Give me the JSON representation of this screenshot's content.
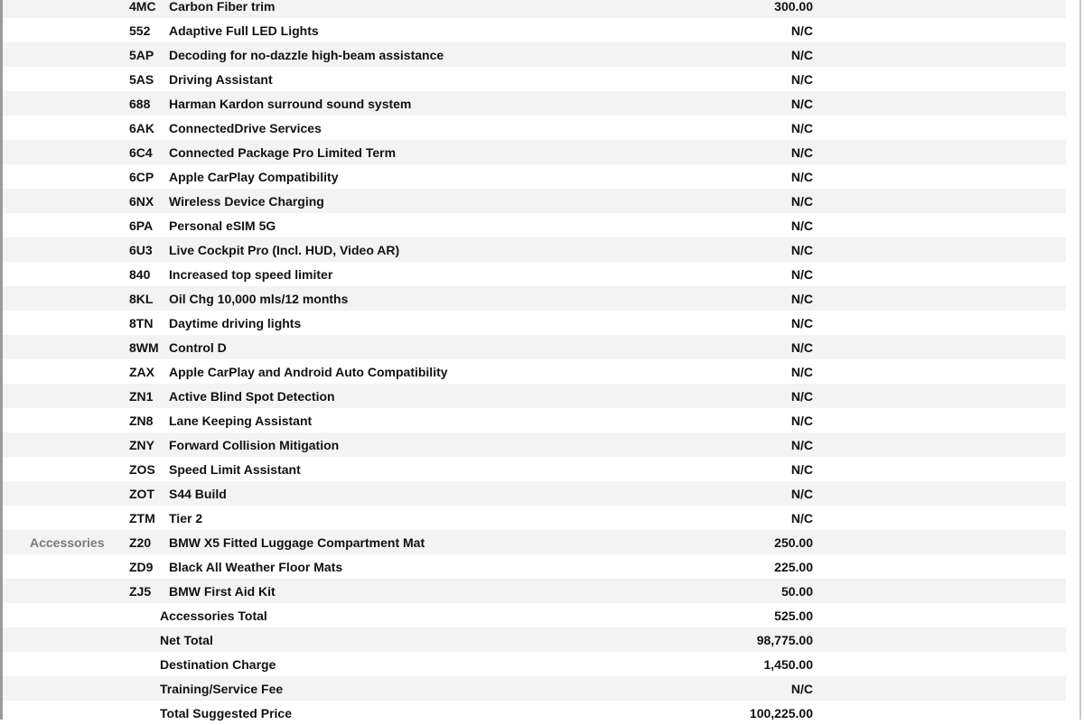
{
  "options": [
    {
      "code": "4MC",
      "description": "Carbon Fiber trim",
      "price": "300.00"
    },
    {
      "code": "552",
      "description": "Adaptive Full LED Lights",
      "price": "N/C"
    },
    {
      "code": "5AP",
      "description": "Decoding for no-dazzle high-beam assistance",
      "price": "N/C"
    },
    {
      "code": "5AS",
      "description": "Driving Assistant",
      "price": "N/C"
    },
    {
      "code": "688",
      "description": "Harman Kardon surround sound system",
      "price": "N/C"
    },
    {
      "code": "6AK",
      "description": "ConnectedDrive Services",
      "price": "N/C"
    },
    {
      "code": "6C4",
      "description": "Connected Package Pro Limited Term",
      "price": "N/C"
    },
    {
      "code": "6CP",
      "description": "Apple CarPlay Compatibility",
      "price": "N/C"
    },
    {
      "code": "6NX",
      "description": "Wireless Device Charging",
      "price": "N/C"
    },
    {
      "code": "6PA",
      "description": "Personal eSIM 5G",
      "price": "N/C"
    },
    {
      "code": "6U3",
      "description": "Live Cockpit Pro (Incl. HUD, Video AR)",
      "price": "N/C"
    },
    {
      "code": "840",
      "description": "Increased top speed limiter",
      "price": "N/C"
    },
    {
      "code": "8KL",
      "description": "Oil Chg 10,000 mls/12 months",
      "price": "N/C"
    },
    {
      "code": "8TN",
      "description": "Daytime driving lights",
      "price": "N/C"
    },
    {
      "code": "8WM",
      "description": "Control D",
      "price": "N/C"
    },
    {
      "code": "ZAX",
      "description": "Apple CarPlay and Android Auto Compatibility",
      "price": "N/C"
    },
    {
      "code": "ZN1",
      "description": "Active Blind Spot Detection",
      "price": "N/C"
    },
    {
      "code": "ZN8",
      "description": "Lane Keeping Assistant",
      "price": "N/C"
    },
    {
      "code": "ZNY",
      "description": "Forward Collision Mitigation",
      "price": "N/C"
    },
    {
      "code": "ZOS",
      "description": "Speed Limit Assistant",
      "price": "N/C"
    },
    {
      "code": "ZOT",
      "description": "S44 Build",
      "price": "N/C"
    },
    {
      "code": "ZTM",
      "description": "Tier 2",
      "price": "N/C"
    }
  ],
  "accessories": {
    "category_label": "Accessories",
    "items": [
      {
        "code": "Z20",
        "description": "BMW X5 Fitted Luggage Compartment Mat",
        "price": "250.00"
      },
      {
        "code": "ZD9",
        "description": "Black All Weather Floor Mats",
        "price": "225.00"
      },
      {
        "code": "ZJ5",
        "description": "BMW First Aid Kit",
        "price": "50.00"
      }
    ]
  },
  "totals": [
    {
      "label": "Accessories Total",
      "value": "525.00"
    },
    {
      "label": "Net Total",
      "value": "98,775.00"
    },
    {
      "label": "Destination Charge",
      "value": "1,450.00"
    },
    {
      "label": "Training/Service Fee",
      "value": "N/C"
    },
    {
      "label": "Total Suggested Price",
      "value": "100,225.00"
    }
  ]
}
